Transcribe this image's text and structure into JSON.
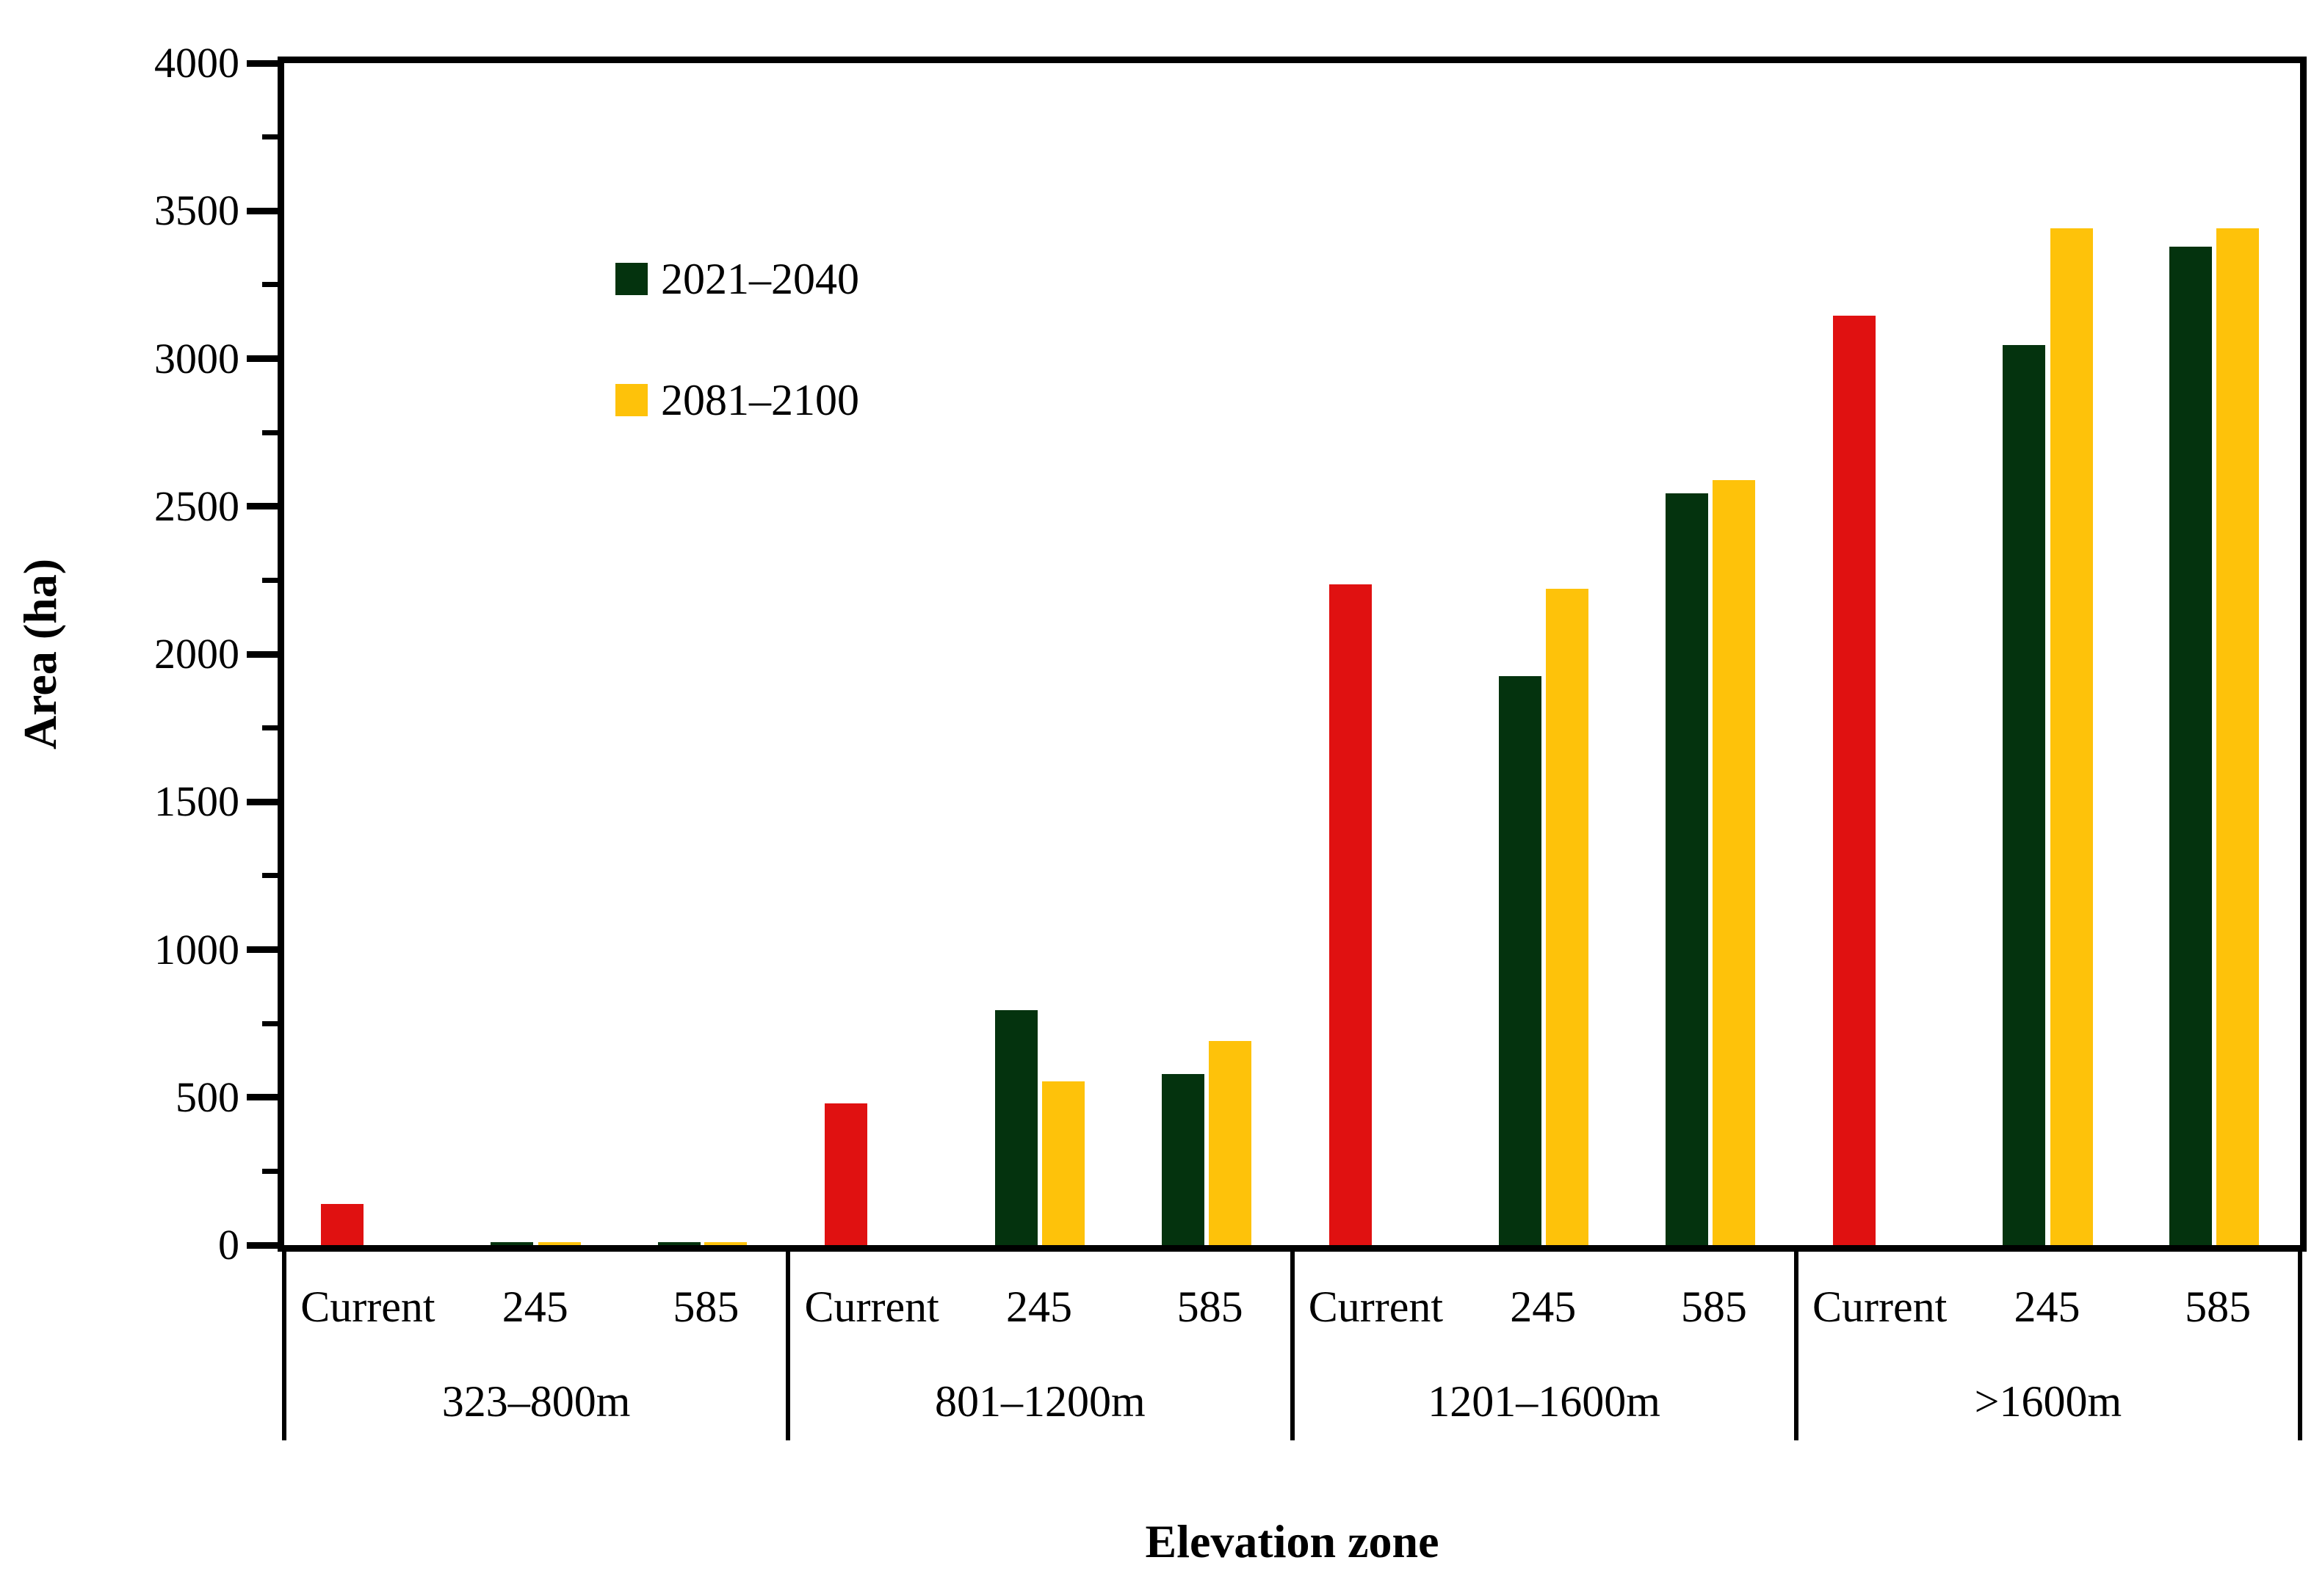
{
  "chart_data": {
    "type": "bar",
    "title": "",
    "xlabel": "Elevation zone",
    "ylabel": "Area (ha)",
    "ylim": [
      0,
      4000
    ],
    "yticks": [
      0,
      500,
      1000,
      1500,
      2000,
      2500,
      3000,
      3500,
      4000
    ],
    "minor_tick_step": 250,
    "grid": false,
    "legend_position": "upper-left-inside",
    "legend": [
      {
        "name": "2021–2040",
        "color": "#04330e"
      },
      {
        "name": "2081–2100",
        "color": "#fec20a"
      }
    ],
    "series_colors": {
      "Current": "#e01111",
      "2021–2040": "#04330e",
      "2081–2100": "#fec20a"
    },
    "scenario_labels": [
      "Current",
      "245",
      "585"
    ],
    "zones": [
      {
        "zone": "323–800m",
        "columns": [
          {
            "label": "Current",
            "bars": [
              {
                "series": "Current",
                "value": 140
              }
            ]
          },
          {
            "label": "245",
            "bars": [
              {
                "series": "2021–2040",
                "value": 10
              },
              {
                "series": "2081–2100",
                "value": 10
              }
            ]
          },
          {
            "label": "585",
            "bars": [
              {
                "series": "2021–2040",
                "value": 10
              },
              {
                "series": "2081–2100",
                "value": 10
              }
            ]
          }
        ]
      },
      {
        "zone": "801–1200m",
        "columns": [
          {
            "label": "Current",
            "bars": [
              {
                "series": "Current",
                "value": 480
              }
            ]
          },
          {
            "label": "245",
            "bars": [
              {
                "series": "2021–2040",
                "value": 795
              },
              {
                "series": "2081–2100",
                "value": 555
              }
            ]
          },
          {
            "label": "585",
            "bars": [
              {
                "series": "2021–2040",
                "value": 580
              },
              {
                "series": "2081–2100",
                "value": 690
              }
            ]
          }
        ]
      },
      {
        "zone": "1201–1600m",
        "columns": [
          {
            "label": "Current",
            "bars": [
              {
                "series": "Current",
                "value": 2235
              }
            ]
          },
          {
            "label": "245",
            "bars": [
              {
                "series": "2021–2040",
                "value": 1925
              },
              {
                "series": "2081–2100",
                "value": 2220
              }
            ]
          },
          {
            "label": "585",
            "bars": [
              {
                "series": "2021–2040",
                "value": 2545
              },
              {
                "series": "2081–2100",
                "value": 2590
              }
            ]
          }
        ]
      },
      {
        "zone": ">1600m",
        "columns": [
          {
            "label": "Current",
            "bars": [
              {
                "series": "Current",
                "value": 3145
              }
            ]
          },
          {
            "label": "245",
            "bars": [
              {
                "series": "2021–2040",
                "value": 3045
              },
              {
                "series": "2081–2100",
                "value": 3440
              }
            ]
          },
          {
            "label": "585",
            "bars": [
              {
                "series": "2021–2040",
                "value": 3380
              },
              {
                "series": "2081–2100",
                "value": 3440
              }
            ]
          }
        ]
      }
    ]
  }
}
